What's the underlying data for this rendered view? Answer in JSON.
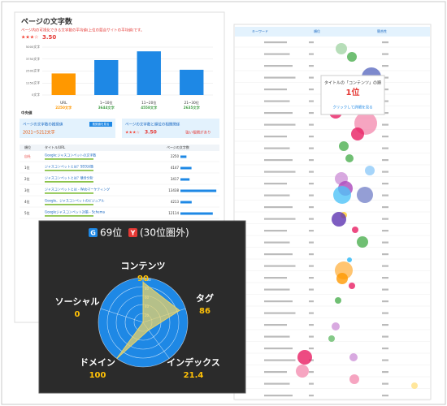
{
  "left_panel": {
    "title": "ページの文字数",
    "subtitle": "ページ内の可視化できる文字数の平均値(上位の競合サイトの平均値)です。",
    "stars": "★★★☆",
    "rating": "3.50",
    "bar_chart": {
      "type": "bar",
      "categories": [
        "URL",
        "1~10位",
        "11~20位",
        "21~30位"
      ],
      "values": [
        2250,
        3644,
        4558,
        2635
      ],
      "value_labels": [
        "2250文字",
        "3644文字",
        "4558文字",
        "2635文字"
      ],
      "colors": [
        "#ff9800",
        "#1e88e5",
        "#1e88e5",
        "#1e88e5"
      ],
      "ylim": [
        0,
        5000
      ],
      "yticks": [
        {
          "value": 0,
          "label": "0文字"
        },
        {
          "value": 1250,
          "label": "1250文字"
        },
        {
          "value": 2500,
          "label": "2500文字"
        },
        {
          "value": 3750,
          "label": "3750文字"
        },
        {
          "value": 5000,
          "label": "5000文字"
        }
      ],
      "grid": true,
      "row_label": "中央値"
    },
    "recommend_box": {
      "title": "ページの文字数の推奨値",
      "value": "2021~5212文字",
      "badge": "推奨値を見る"
    },
    "correlation_box": {
      "title": "ページの文字数と順位の相関関係",
      "stars": "★★★☆",
      "value": "3.50",
      "note": "強い相関があり"
    },
    "table": {
      "headers": [
        "順位",
        "タイトル/URL",
        "ページの文字数"
      ],
      "xlim": [
        0,
        14000
      ],
      "rows": [
        {
          "rank": "自社",
          "title": "Google:ジャスコンペットの文字数",
          "value": 2250
        },
        {
          "rank": "1位",
          "title": "ジャスコンペットとは？SEO対策",
          "value": 4147
        },
        {
          "rank": "2位",
          "title": "ジャスコンペットとは？競合分析",
          "value": 3417
        },
        {
          "rank": "3位",
          "title": "ジャスコンペットとは - Webマーケティング",
          "value": 13438
        },
        {
          "rank": "4位",
          "title": "Google、ジャスコンペットのビジュアル",
          "value": 4213
        },
        {
          "rank": "5位",
          "title": "Googleジャスコンペット対策 - Schema",
          "value": 12114
        }
      ]
    }
  },
  "right_panel": {
    "headers": [
      "キーワード",
      "順位",
      "競合性"
    ],
    "tooltip": {
      "title": "タイトルの「コンテンツ」の順",
      "rank": "1位",
      "link": "クリックして詳細を見る"
    }
  },
  "chart_data": {
    "type": "radar",
    "rank_google_badge": "G",
    "rank_google": "69位",
    "rank_yahoo_badge": "Y",
    "rank_yahoo": "(30位圏外)",
    "categories": [
      "コンテンツ",
      "タグ",
      "インデックス",
      "ドメイン",
      "ソーシャル"
    ],
    "values": [
      90,
      86,
      21.4,
      100,
      0
    ],
    "rlim": [
      0,
      100
    ],
    "rticks": [
      20,
      40,
      60,
      80,
      100
    ],
    "color": "#e8d36a"
  }
}
